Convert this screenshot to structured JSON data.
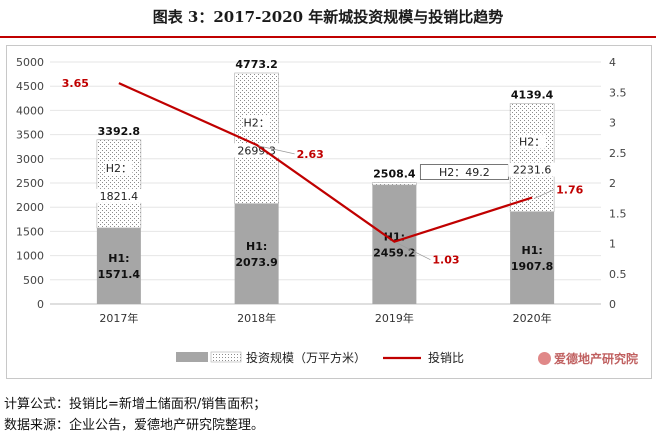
{
  "title": "图表 3：2017-2020 年新城投资规模与投销比趋势",
  "chart_data": {
    "type": "bar+line",
    "categories": [
      "2017年",
      "2018年",
      "2019年",
      "2020年"
    ],
    "left_axis": {
      "min": 0,
      "max": 5000,
      "ticks": [
        0,
        500,
        1000,
        1500,
        2000,
        2500,
        3000,
        3500,
        4000,
        4500,
        5000
      ]
    },
    "right_axis": {
      "min": 0,
      "max": 4,
      "ticks": [
        "0",
        "0.5",
        "1",
        "1.5",
        "2",
        "2.5",
        "3",
        "3.5",
        "4"
      ]
    },
    "bars": {
      "name": "投资规模（万平方米）",
      "h1_values": [
        1571.4,
        2073.9,
        2459.2,
        1907.8
      ],
      "h2_values": [
        1821.4,
        2699.3,
        49.2,
        2231.6
      ],
      "totals": [
        "3392.8",
        "4773.2",
        "2508.4",
        "4139.4"
      ],
      "h1_labels": [
        "H1:\n1571.4",
        "H1:\n2073.9",
        "H1:\n2459.2",
        "H1:\n1907.8"
      ],
      "h2_labels": [
        "H2：\n1821.4",
        "H2：\n2699.3",
        "H2：49.2",
        "H2：\n2231.6"
      ],
      "h1_color": "#a6a6a6",
      "h2_pattern_color": "#a6a6a6"
    },
    "line": {
      "name": "投销比",
      "values": [
        3.65,
        2.63,
        1.03,
        1.76
      ],
      "labels": [
        "3.65",
        "2.63",
        "1.03",
        "1.76"
      ],
      "color": "#c00000"
    },
    "legend_position": "bottom"
  },
  "brand": "爱德地产研究院",
  "footnotes": [
    "计算公式：投销比=新增土储面积/销售面积；",
    "数据来源：企业公告，爱德地产研究院整理。"
  ]
}
